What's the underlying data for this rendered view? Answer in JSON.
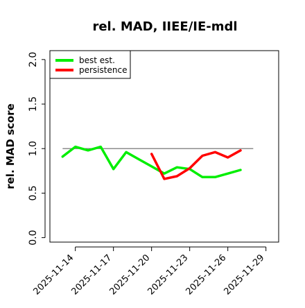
{
  "chart_data": {
    "type": "line",
    "title": "rel. MAD, IIEE/IE-mdl",
    "xlabel": "",
    "ylabel": "rel. MAD score",
    "ylim": [
      -0.05,
      2.1
    ],
    "yticks": [
      0.0,
      0.5,
      1.0,
      1.5,
      2.0
    ],
    "ytick_labels": [
      "0.0",
      "0.5",
      "1.0",
      "1.5",
      "2.0"
    ],
    "xlim": [
      "2025-11-12",
      "2025-11-30"
    ],
    "xticks": [
      "2025-11-14",
      "2025-11-17",
      "2025-11-20",
      "2025-11-23",
      "2025-11-26",
      "2025-11-29"
    ],
    "grid": false,
    "legend_position": "top-left",
    "reference_line": {
      "y": 1.0,
      "x": [
        "2025-11-13",
        "2025-11-28"
      ],
      "color": "#666666"
    },
    "series": [
      {
        "name": "best est.",
        "color": "#00ee00",
        "points": [
          {
            "x": "2025-11-13",
            "y": 0.91
          },
          {
            "x": "2025-11-14",
            "y": 1.02
          },
          {
            "x": "2025-11-15",
            "y": 0.98
          },
          {
            "x": "2025-11-16",
            "y": 1.02
          },
          {
            "x": "2025-11-17",
            "y": 0.77
          },
          {
            "x": "2025-11-18",
            "y": 0.96
          },
          {
            "x": "2025-11-19",
            "y": 0.88
          },
          {
            "x": "2025-11-20",
            "y": 0.8
          },
          {
            "x": "2025-11-21",
            "y": 0.72
          },
          {
            "x": "2025-11-22",
            "y": 0.79
          },
          {
            "x": "2025-11-23",
            "y": 0.77
          },
          {
            "x": "2025-11-24",
            "y": 0.68
          },
          {
            "x": "2025-11-25",
            "y": 0.68
          },
          {
            "x": "2025-11-26",
            "y": 0.72
          },
          {
            "x": "2025-11-27",
            "y": 0.76
          }
        ]
      },
      {
        "name": "persistence",
        "color": "#ff0000",
        "points": [
          {
            "x": "2025-11-20",
            "y": 0.94
          },
          {
            "x": "2025-11-21",
            "y": 0.66
          },
          {
            "x": "2025-11-22",
            "y": 0.69
          },
          {
            "x": "2025-11-23",
            "y": 0.78
          },
          {
            "x": "2025-11-24",
            "y": 0.92
          },
          {
            "x": "2025-11-25",
            "y": 0.96
          },
          {
            "x": "2025-11-26",
            "y": 0.9
          },
          {
            "x": "2025-11-27",
            "y": 0.98
          }
        ]
      }
    ]
  }
}
